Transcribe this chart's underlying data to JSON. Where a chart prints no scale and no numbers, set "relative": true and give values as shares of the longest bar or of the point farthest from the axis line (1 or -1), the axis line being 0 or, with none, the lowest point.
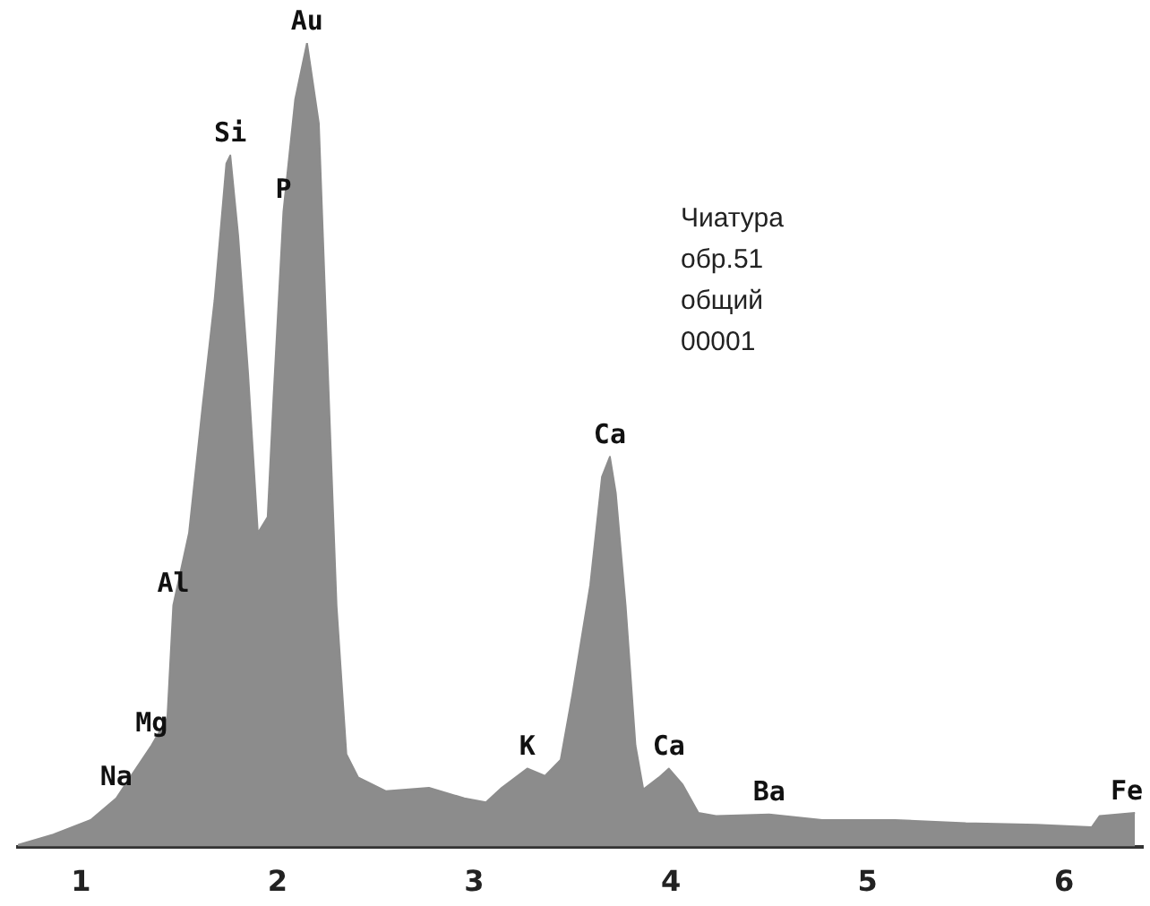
{
  "chart_data": {
    "type": "area",
    "relative": true,
    "xlim": [
      0.68,
      6.4
    ],
    "xticks": [
      1,
      2,
      3,
      4,
      5,
      6
    ],
    "grid": false,
    "legend": false,
    "series": [
      {
        "color": "#8c8c8c",
        "x": [
          0.68,
          0.86,
          1.05,
          1.18,
          1.27,
          1.36,
          1.44,
          1.47,
          1.55,
          1.62,
          1.68,
          1.74,
          1.76,
          1.8,
          1.85,
          1.9,
          1.95,
          1.98,
          2.03,
          2.09,
          2.15,
          2.21,
          2.25,
          2.3,
          2.35,
          2.41,
          2.55,
          2.77,
          2.95,
          3.06,
          3.14,
          3.27,
          3.36,
          3.44,
          3.5,
          3.59,
          3.65,
          3.69,
          3.72,
          3.77,
          3.82,
          3.86,
          3.94,
          3.99,
          4.06,
          4.14,
          4.23,
          4.5,
          4.77,
          5.14,
          5.5,
          5.86,
          6.14,
          6.18,
          6.36
        ],
        "values": [
          0.002,
          0.015,
          0.033,
          0.06,
          0.093,
          0.126,
          0.16,
          0.3,
          0.39,
          0.55,
          0.68,
          0.85,
          0.86,
          0.76,
          0.59,
          0.39,
          0.41,
          0.56,
          0.79,
          0.93,
          1,
          0.9,
          0.63,
          0.3,
          0.115,
          0.086,
          0.069,
          0.073,
          0.06,
          0.055,
          0.073,
          0.097,
          0.088,
          0.108,
          0.19,
          0.325,
          0.46,
          0.485,
          0.44,
          0.3,
          0.126,
          0.071,
          0.086,
          0.097,
          0.077,
          0.042,
          0.038,
          0.04,
          0.033,
          0.033,
          0.029,
          0.027,
          0.024,
          0.038,
          0.042
        ]
      }
    ],
    "annotations": [
      {
        "text": "Na",
        "x": 1.18,
        "y": 0.06
      },
      {
        "text": "Mg",
        "x": 1.36,
        "y": 0.126
      },
      {
        "text": "Al",
        "x": 1.47,
        "y": 0.3
      },
      {
        "text": "Si",
        "x": 1.76,
        "y": 0.86
      },
      {
        "text": "P",
        "x": 2.03,
        "y": 0.79
      },
      {
        "text": "Au",
        "x": 2.15,
        "y": 1
      },
      {
        "text": "K",
        "x": 3.27,
        "y": 0.097
      },
      {
        "text": "Ca",
        "x": 3.69,
        "y": 0.485
      },
      {
        "text": "Ca",
        "x": 3.99,
        "y": 0.097
      },
      {
        "text": "Ba",
        "x": 4.5,
        "y": 0.04
      },
      {
        "text": "Fe",
        "x": 6.36,
        "y": 0.042
      },
      "Чиатура",
      "обр.51",
      "общий",
      "00001"
    ]
  }
}
